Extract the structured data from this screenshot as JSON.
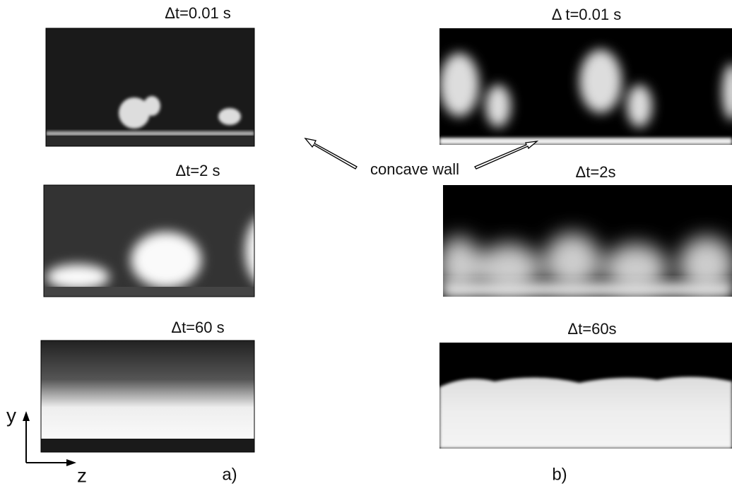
{
  "panels_a": [
    {
      "label": "Δt=0.01 s"
    },
    {
      "label": "Δt=2 s"
    },
    {
      "label": "Δt=60 s"
    }
  ],
  "panels_b": [
    {
      "label": "Δ t=0.01 s"
    },
    {
      "label": "Δt=2s"
    },
    {
      "label": "Δt=60s"
    }
  ],
  "annotation": "concave wall",
  "axes": {
    "y": "y",
    "z": "z"
  },
  "captions": {
    "a": "a)",
    "b": "b)"
  }
}
